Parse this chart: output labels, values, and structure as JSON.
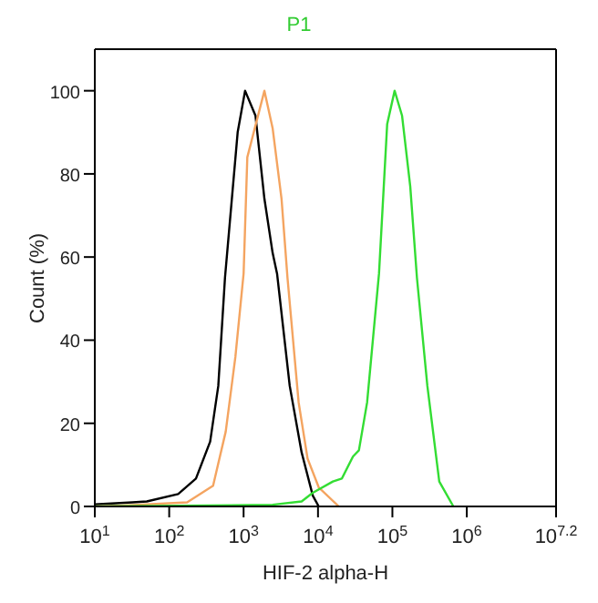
{
  "chart_data": {
    "type": "line",
    "title": "P1",
    "xlabel": "HIF-2 alpha-H",
    "ylabel": "Count (%)",
    "log": "x",
    "grid": false,
    "legend": false,
    "marker": "none",
    "line_style": "solid",
    "xlim": [
      10,
      15848932
    ],
    "xticks": [
      {
        "value": 10,
        "label": "10$^{1}$"
      },
      {
        "value": 100,
        "label": "10$^{2}$"
      },
      {
        "value": 1000,
        "label": "10$^{3}$"
      },
      {
        "value": 10000,
        "label": "10$^{4}$"
      },
      {
        "value": 100000,
        "label": "10$^{5}$"
      },
      {
        "value": 1000000,
        "label": "10$^{6}$"
      },
      {
        "value": 15848932,
        "label": "10$^{7.2}$"
      }
    ],
    "ylim": [
      0,
      110
    ],
    "yticks": [
      0,
      20,
      40,
      60,
      80,
      100
    ],
    "series": [
      {
        "color": "#000000",
        "x": [
          10,
          32,
          50,
          132,
          229,
          355,
          457,
          562,
          832,
          1047,
          1445,
          1905,
          2455,
          2818,
          4169,
          6026,
          8511,
          10233
        ],
        "values": [
          0.5,
          1,
          1.2,
          3,
          6.7,
          15.6,
          29,
          55,
          90,
          100,
          94,
          74,
          61,
          56,
          29,
          13,
          2.6,
          0
        ]
      },
      {
        "color": "#f4a460",
        "x": [
          10,
          29,
          174,
          389,
          575,
          776,
          1000,
          1122,
          1905,
          2455,
          3236,
          3890,
          5495,
          7244,
          10233,
          19055
        ],
        "values": [
          0,
          0.3,
          1,
          5,
          18,
          36,
          56,
          84,
          100,
          91,
          74,
          55,
          25,
          11.5,
          4.6,
          0
        ]
      },
      {
        "color": "#33dd33",
        "x": [
          10,
          2455,
          6026,
          8511,
          15849,
          20893,
          29512,
          35481,
          45709,
          66069,
          85114,
          107152,
          134896,
          173780,
          213796,
          295121,
          426580,
          660693
        ],
        "values": [
          0,
          0.4,
          1.2,
          3.3,
          6,
          6.7,
          12,
          13.5,
          25,
          56,
          92,
          100,
          94,
          77,
          55,
          29,
          6,
          0
        ]
      }
    ]
  }
}
